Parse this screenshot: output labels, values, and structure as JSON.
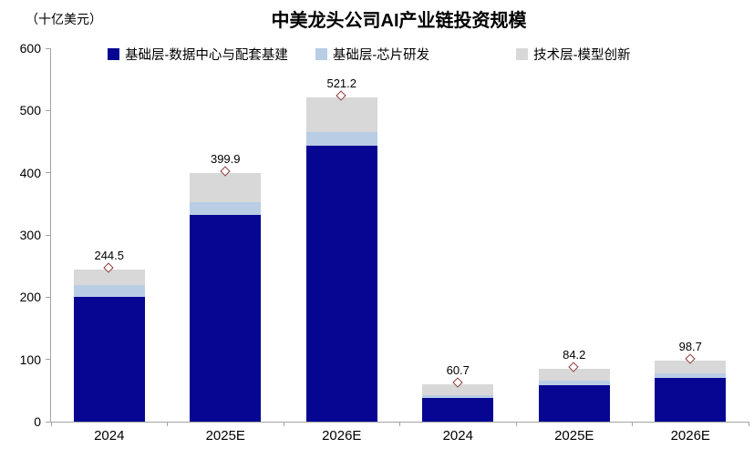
{
  "chart": {
    "title": "中美龙头公司AI产业链投资规模",
    "unit_label": "（十亿美元）"
  },
  "chart_data": {
    "type": "bar",
    "stacked": true,
    "title": "中美龙头公司AI产业链投资规模",
    "ylabel": "（十亿美元）",
    "xlabel": "",
    "categories": [
      "2024",
      "2025E",
      "2026E",
      "2024",
      "2025E",
      "2026E"
    ],
    "series": [
      {
        "name": "基础层-数据中心与配套基建",
        "color": "#060692",
        "values": [
          200,
          332,
          443,
          38,
          59,
          70
        ]
      },
      {
        "name": "基础层-芯片研发",
        "color": "#b9cde5",
        "values": [
          20,
          21,
          22,
          4,
          7,
          7
        ]
      },
      {
        "name": "技术层-模型创新",
        "color": "#d8d8d8",
        "values": [
          24.5,
          46.9,
          56.2,
          18.7,
          18.2,
          21.7
        ]
      }
    ],
    "totals": [
      244.5,
      399.9,
      521.2,
      60.7,
      84.2,
      98.7
    ],
    "total_labels": [
      "244.5",
      "399.9",
      "521.2",
      "60.7",
      "84.2",
      "98.7"
    ],
    "marker": {
      "shape": "diamond",
      "fill": "#ffffff",
      "border": "#8c3a38"
    },
    "ylim": [
      0,
      600
    ],
    "yticks": [
      0,
      100,
      200,
      300,
      400,
      500,
      600
    ],
    "grid": false,
    "legend_position": "top",
    "axis_color": "#a3a3a3",
    "text_color": "#000000"
  }
}
